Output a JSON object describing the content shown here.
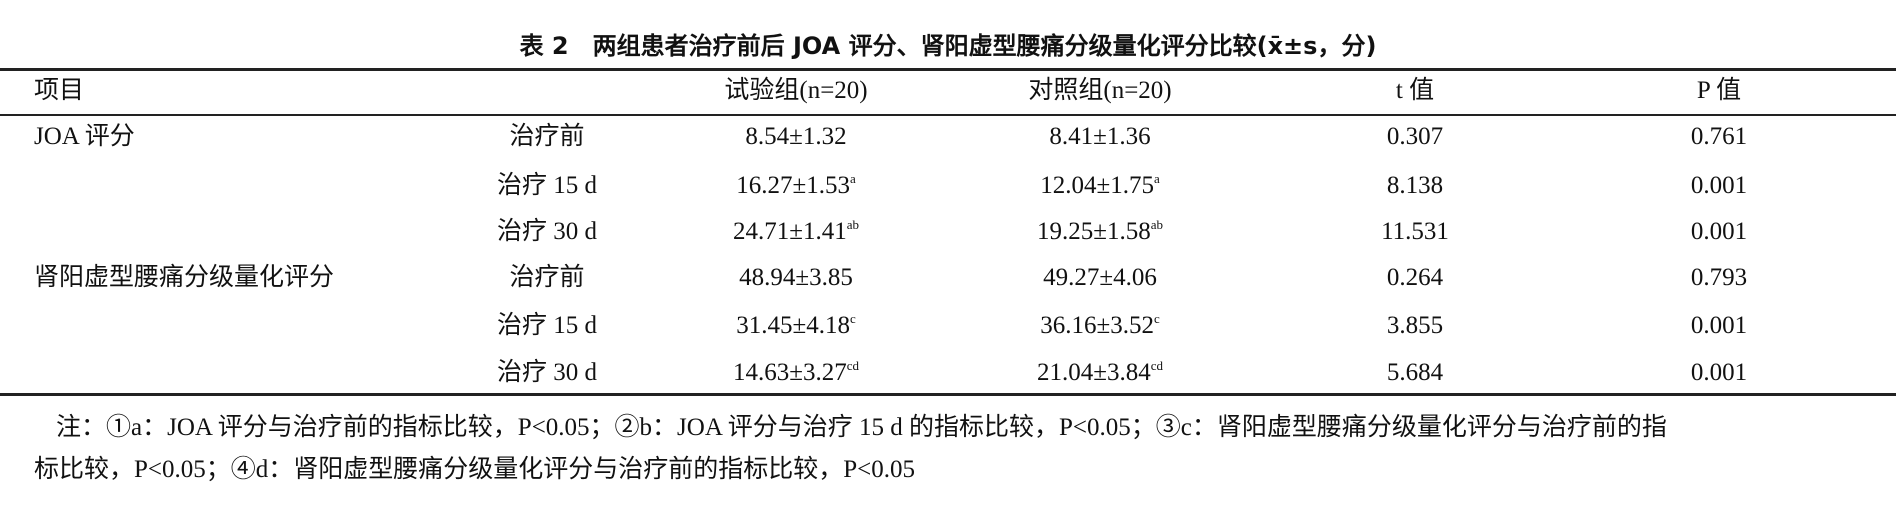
{
  "header": {
    "title": "表 2　两组患者治疗前后 JOA 评分、肾阳虚型腰痛分级量化评分比较(x̄±s，分)"
  },
  "table": {
    "columns": [
      "项目",
      "试验组(n=20)",
      "对照组(n=20)",
      "t 值",
      "P 值"
    ],
    "groups": [
      {
        "name": "JOA 评分",
        "rows": [
          {
            "phase": "治疗前",
            "trial": {
              "text": "8.54±1.32"
            },
            "control": {
              "text": "8.41±1.36"
            },
            "t": "0.307",
            "p": "0.761"
          },
          {
            "phase": "治疗 15 d",
            "trial": {
              "text": "16.27±1.53",
              "sup": "a"
            },
            "control": {
              "text": "12.04±1.75",
              "sup": "a"
            },
            "t": "8.138",
            "p": "0.001"
          },
          {
            "phase": "治疗 30 d",
            "trial": {
              "text": "24.71±1.41",
              "sup": "ab"
            },
            "control": {
              "text": "19.25±1.58",
              "sup": "ab"
            },
            "t": "11.531",
            "p": "0.001"
          }
        ]
      },
      {
        "name": "肾阳虚型腰痛分级量化评分",
        "rows": [
          {
            "phase": "治疗前",
            "trial": {
              "text": "48.94±3.85"
            },
            "control": {
              "text": "49.27±4.06"
            },
            "t": "0.264",
            "p": "0.793"
          },
          {
            "phase": "治疗 15 d",
            "trial": {
              "text": "31.45±4.18",
              "sup": "c"
            },
            "control": {
              "text": "36.16±3.52",
              "sup": "c"
            },
            "t": "3.855",
            "p": "0.001"
          },
          {
            "phase": "治疗 30 d",
            "trial": {
              "text": "14.63±3.27",
              "sup": "cd"
            },
            "control": {
              "text": "21.04±3.84",
              "sup": "cd"
            },
            "t": "5.684",
            "p": "0.001"
          }
        ]
      }
    ]
  },
  "note": {
    "lines": [
      "注：①a：JOA 评分与治疗前的指标比较，P<0.05；②b：JOA 评分与治疗 15 d 的指标比较，P<0.05；③c：肾阳虚型腰痛分级量化评分与治疗前的指",
      "标比较，P<0.05；④d：肾阳虚型腰痛分级量化评分与治疗前的指标比较，P<0.05"
    ]
  }
}
